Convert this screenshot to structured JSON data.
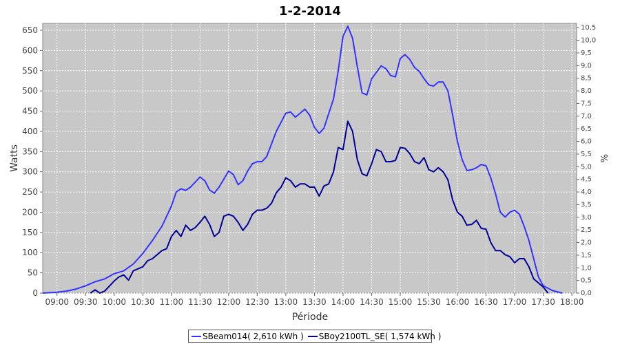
{
  "chart_data": {
    "type": "line",
    "title": "1-2-2014",
    "xlabel": "Période",
    "ylabel": "Watts",
    "y2label": "%",
    "ylim": [
      0,
      667
    ],
    "y2lim": [
      0,
      10.67
    ],
    "xlim": [
      "08:45",
      "18:05"
    ],
    "x_ticks": [
      "09:00",
      "09:30",
      "10:00",
      "10:30",
      "11:00",
      "11:30",
      "12:00",
      "12:30",
      "13:00",
      "13:30",
      "14:00",
      "14:30",
      "15:00",
      "15:30",
      "16:00",
      "16:30",
      "17:00",
      "17:30",
      "18:00"
    ],
    "y_ticks": [
      0,
      50,
      100,
      150,
      200,
      250,
      300,
      350,
      400,
      450,
      500,
      550,
      600,
      650
    ],
    "y2_ticks": [
      "0,0",
      "0,5",
      "1,0",
      "1,5",
      "2,0",
      "2,5",
      "3,0",
      "3,5",
      "4,0",
      "4,5",
      "5,0",
      "5,5",
      "6,0",
      "6,5",
      "7,0",
      "7,5",
      "8,0",
      "8,5",
      "9,0",
      "9,5",
      "10,0",
      "10,5"
    ],
    "grid": true,
    "legend_position": "bottom",
    "series": [
      {
        "name": "SBeam014( 2,610 kWh )",
        "color": "#3333ff",
        "points": [
          [
            "08:45",
            0
          ],
          [
            "09:00",
            2
          ],
          [
            "09:10",
            5
          ],
          [
            "09:20",
            10
          ],
          [
            "09:30",
            18
          ],
          [
            "09:40",
            28
          ],
          [
            "09:50",
            35
          ],
          [
            "10:00",
            48
          ],
          [
            "10:10",
            55
          ],
          [
            "10:20",
            72
          ],
          [
            "10:30",
            98
          ],
          [
            "10:40",
            130
          ],
          [
            "10:50",
            165
          ],
          [
            "11:00",
            215
          ],
          [
            "11:05",
            250
          ],
          [
            "11:10",
            258
          ],
          [
            "11:15",
            254
          ],
          [
            "11:20",
            262
          ],
          [
            "11:30",
            287
          ],
          [
            "11:35",
            278
          ],
          [
            "11:40",
            255
          ],
          [
            "11:45",
            247
          ],
          [
            "11:50",
            262
          ],
          [
            "12:00",
            302
          ],
          [
            "12:05",
            293
          ],
          [
            "12:10",
            268
          ],
          [
            "12:15",
            278
          ],
          [
            "12:20",
            302
          ],
          [
            "12:25",
            320
          ],
          [
            "12:30",
            325
          ],
          [
            "12:35",
            325
          ],
          [
            "12:40",
            338
          ],
          [
            "12:50",
            400
          ],
          [
            "13:00",
            445
          ],
          [
            "13:05",
            448
          ],
          [
            "13:10",
            435
          ],
          [
            "13:15",
            445
          ],
          [
            "13:20",
            455
          ],
          [
            "13:25",
            440
          ],
          [
            "13:30",
            410
          ],
          [
            "13:35",
            395
          ],
          [
            "13:40",
            408
          ],
          [
            "13:50",
            480
          ],
          [
            "13:55",
            550
          ],
          [
            "14:00",
            635
          ],
          [
            "14:05",
            660
          ],
          [
            "14:10",
            630
          ],
          [
            "14:15",
            560
          ],
          [
            "14:20",
            495
          ],
          [
            "14:25",
            490
          ],
          [
            "14:30",
            530
          ],
          [
            "14:40",
            562
          ],
          [
            "14:45",
            555
          ],
          [
            "14:50",
            538
          ],
          [
            "14:55",
            535
          ],
          [
            "15:00",
            580
          ],
          [
            "15:05",
            590
          ],
          [
            "15:10",
            578
          ],
          [
            "15:15",
            558
          ],
          [
            "15:20",
            548
          ],
          [
            "15:25",
            530
          ],
          [
            "15:30",
            515
          ],
          [
            "15:35",
            512
          ],
          [
            "15:40",
            522
          ],
          [
            "15:45",
            522
          ],
          [
            "15:50",
            500
          ],
          [
            "15:55",
            440
          ],
          [
            "16:00",
            375
          ],
          [
            "16:05",
            330
          ],
          [
            "16:10",
            303
          ],
          [
            "16:15",
            305
          ],
          [
            "16:20",
            310
          ],
          [
            "16:25",
            318
          ],
          [
            "16:30",
            315
          ],
          [
            "16:35",
            285
          ],
          [
            "16:40",
            245
          ],
          [
            "16:45",
            200
          ],
          [
            "16:50",
            188
          ],
          [
            "16:55",
            200
          ],
          [
            "17:00",
            205
          ],
          [
            "17:05",
            195
          ],
          [
            "17:10",
            165
          ],
          [
            "17:15",
            130
          ],
          [
            "17:20",
            85
          ],
          [
            "17:25",
            40
          ],
          [
            "17:30",
            18
          ],
          [
            "17:40",
            6
          ],
          [
            "17:50",
            0
          ]
        ]
      },
      {
        "name": "SBoy2100TL_SE( 1,574 kWh )",
        "color": "#000099",
        "points": [
          [
            "09:35",
            0
          ],
          [
            "09:40",
            8
          ],
          [
            "09:45",
            0
          ],
          [
            "09:50",
            5
          ],
          [
            "10:00",
            30
          ],
          [
            "10:05",
            40
          ],
          [
            "10:10",
            45
          ],
          [
            "10:15",
            32
          ],
          [
            "10:20",
            55
          ],
          [
            "10:25",
            60
          ],
          [
            "10:30",
            65
          ],
          [
            "10:35",
            80
          ],
          [
            "10:40",
            85
          ],
          [
            "10:45",
            95
          ],
          [
            "10:50",
            105
          ],
          [
            "10:55",
            110
          ],
          [
            "11:00",
            140
          ],
          [
            "11:05",
            155
          ],
          [
            "11:10",
            140
          ],
          [
            "11:15",
            168
          ],
          [
            "11:20",
            155
          ],
          [
            "11:25",
            162
          ],
          [
            "11:30",
            175
          ],
          [
            "11:35",
            190
          ],
          [
            "11:40",
            170
          ],
          [
            "11:45",
            140
          ],
          [
            "11:50",
            150
          ],
          [
            "11:55",
            190
          ],
          [
            "12:00",
            195
          ],
          [
            "12:05",
            190
          ],
          [
            "12:10",
            175
          ],
          [
            "12:15",
            155
          ],
          [
            "12:20",
            170
          ],
          [
            "12:25",
            195
          ],
          [
            "12:30",
            205
          ],
          [
            "12:35",
            205
          ],
          [
            "12:40",
            210
          ],
          [
            "12:45",
            222
          ],
          [
            "12:50",
            248
          ],
          [
            "12:55",
            262
          ],
          [
            "13:00",
            285
          ],
          [
            "13:05",
            278
          ],
          [
            "13:10",
            262
          ],
          [
            "13:15",
            270
          ],
          [
            "13:20",
            270
          ],
          [
            "13:25",
            262
          ],
          [
            "13:30",
            262
          ],
          [
            "13:35",
            240
          ],
          [
            "13:40",
            265
          ],
          [
            "13:45",
            270
          ],
          [
            "13:50",
            300
          ],
          [
            "13:55",
            360
          ],
          [
            "14:00",
            355
          ],
          [
            "14:05",
            425
          ],
          [
            "14:10",
            400
          ],
          [
            "14:15",
            330
          ],
          [
            "14:20",
            295
          ],
          [
            "14:25",
            290
          ],
          [
            "14:30",
            320
          ],
          [
            "14:35",
            355
          ],
          [
            "14:40",
            350
          ],
          [
            "14:45",
            325
          ],
          [
            "14:50",
            325
          ],
          [
            "14:55",
            328
          ],
          [
            "15:00",
            360
          ],
          [
            "15:05",
            358
          ],
          [
            "15:10",
            345
          ],
          [
            "15:15",
            325
          ],
          [
            "15:20",
            320
          ],
          [
            "15:25",
            335
          ],
          [
            "15:30",
            305
          ],
          [
            "15:35",
            300
          ],
          [
            "15:40",
            310
          ],
          [
            "15:45",
            300
          ],
          [
            "15:50",
            280
          ],
          [
            "15:55",
            230
          ],
          [
            "16:00",
            200
          ],
          [
            "16:05",
            190
          ],
          [
            "16:10",
            168
          ],
          [
            "16:15",
            170
          ],
          [
            "16:20",
            180
          ],
          [
            "16:25",
            160
          ],
          [
            "16:30",
            158
          ],
          [
            "16:35",
            125
          ],
          [
            "16:40",
            105
          ],
          [
            "16:45",
            105
          ],
          [
            "16:50",
            95
          ],
          [
            "16:55",
            90
          ],
          [
            "17:00",
            75
          ],
          [
            "17:05",
            85
          ],
          [
            "17:10",
            85
          ],
          [
            "17:15",
            65
          ],
          [
            "17:20",
            35
          ],
          [
            "17:25",
            25
          ],
          [
            "17:30",
            15
          ],
          [
            "17:35",
            0
          ]
        ]
      }
    ]
  }
}
